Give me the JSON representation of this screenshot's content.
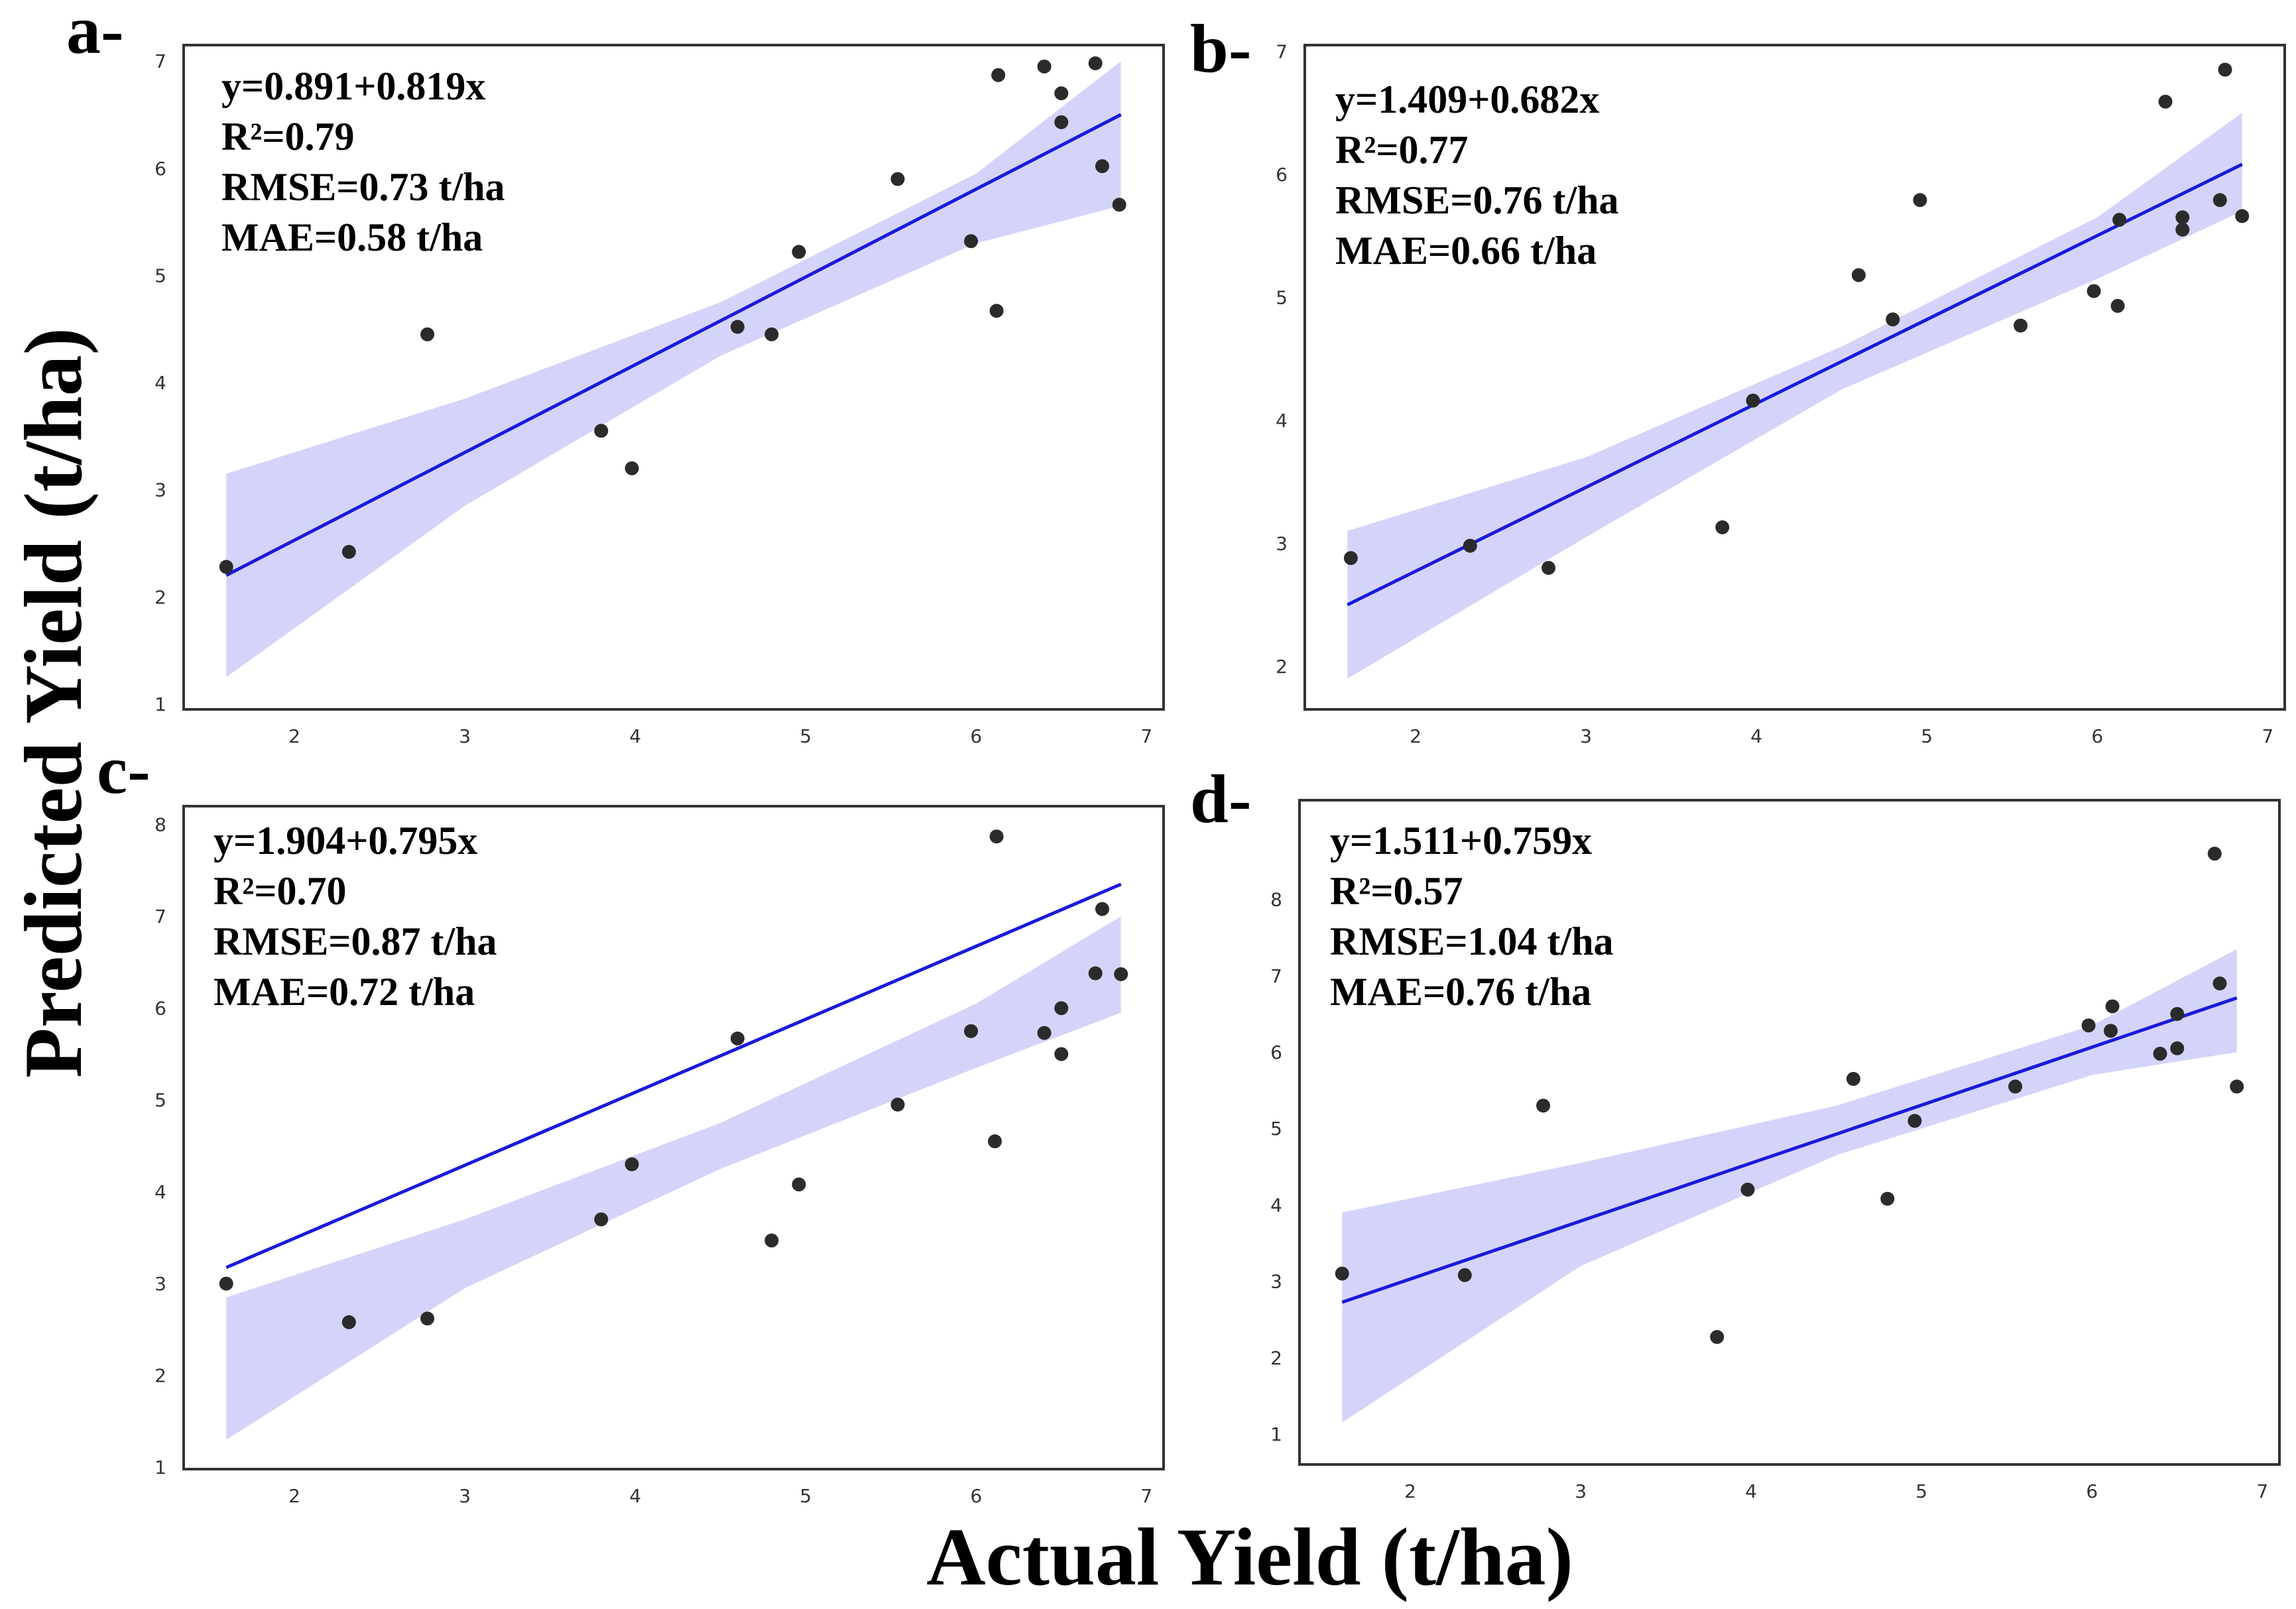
{
  "figure": {
    "xlabel": "Actual Yield (t/ha)",
    "ylabel": "Predicted Yield (t/ha)"
  },
  "colors": {
    "line": "#1a1adb",
    "band": "#d4d4fa",
    "point": "#2b2b2b",
    "frame": "#333333"
  },
  "chart_data": [
    {
      "type": "scatter",
      "panel_label": "a-",
      "stats": [
        "y=0.891+0.819x",
        "R²=0.79",
        "RMSE=0.73 t/ha",
        "MAE=0.58 t/ha"
      ],
      "xlim": [
        1.35,
        7.1
      ],
      "ylim": [
        0.95,
        7.15
      ],
      "xticks": [
        2,
        3,
        4,
        5,
        6,
        7
      ],
      "yticks": [
        1,
        2,
        3,
        4,
        5,
        6,
        7
      ],
      "fit": {
        "intercept": 0.891,
        "slope": 0.819,
        "x_range": [
          1.6,
          6.85
        ]
      },
      "band": {
        "x": [
          1.6,
          3.0,
          4.5,
          6.0,
          6.85
        ],
        "lower": [
          1.25,
          2.85,
          4.25,
          5.3,
          5.65
        ],
        "upper": [
          3.15,
          3.85,
          4.75,
          5.95,
          7.0
        ]
      },
      "points": [
        [
          1.6,
          2.28
        ],
        [
          2.32,
          2.42
        ],
        [
          2.78,
          4.45
        ],
        [
          3.8,
          3.55
        ],
        [
          3.98,
          3.2
        ],
        [
          4.6,
          4.52
        ],
        [
          4.8,
          4.45
        ],
        [
          4.96,
          5.22
        ],
        [
          5.54,
          5.9
        ],
        [
          5.97,
          5.32
        ],
        [
          6.12,
          4.67
        ],
        [
          6.13,
          6.87
        ],
        [
          6.4,
          6.95
        ],
        [
          6.5,
          6.7
        ],
        [
          6.5,
          6.43
        ],
        [
          6.7,
          6.98
        ],
        [
          6.74,
          6.02
        ],
        [
          6.84,
          5.66
        ]
      ]
    },
    {
      "type": "scatter",
      "panel_label": "b-",
      "stats": [
        "y=1.409+0.682x",
        "R²=0.77",
        "RMSE=0.76 t/ha",
        "MAE=0.66 t/ha"
      ],
      "xlim": [
        1.35,
        7.1
      ],
      "ylim": [
        1.65,
        7.05
      ],
      "xticks": [
        2,
        3,
        4,
        5,
        6,
        7
      ],
      "yticks": [
        2,
        3,
        4,
        5,
        6,
        7
      ],
      "fit": {
        "intercept": 1.409,
        "slope": 0.682,
        "x_range": [
          1.6,
          6.85
        ]
      },
      "band": {
        "x": [
          1.6,
          3.0,
          4.5,
          6.0,
          6.85
        ],
        "lower": [
          1.9,
          3.05,
          4.25,
          5.15,
          5.7
        ],
        "upper": [
          3.1,
          3.7,
          4.6,
          5.65,
          6.5
        ]
      },
      "points": [
        [
          1.62,
          2.88
        ],
        [
          2.32,
          2.98
        ],
        [
          2.78,
          2.8
        ],
        [
          3.8,
          3.13
        ],
        [
          3.98,
          4.16
        ],
        [
          4.6,
          5.18
        ],
        [
          4.8,
          4.82
        ],
        [
          4.96,
          5.79
        ],
        [
          5.55,
          4.77
        ],
        [
          5.98,
          5.05
        ],
        [
          6.12,
          4.93
        ],
        [
          6.13,
          5.63
        ],
        [
          6.4,
          6.59
        ],
        [
          6.5,
          5.65
        ],
        [
          6.5,
          5.55
        ],
        [
          6.72,
          5.79
        ],
        [
          6.75,
          6.85
        ],
        [
          6.85,
          5.66
        ]
      ]
    },
    {
      "type": "scatter",
      "panel_label": "c-",
      "stats": [
        "y=1.904+0.795x",
        "R²=0.70",
        "RMSE=0.87 t/ha",
        "MAE=0.72 t/ha"
      ],
      "xlim": [
        1.35,
        7.1
      ],
      "ylim": [
        0.98,
        8.2
      ],
      "xticks": [
        2,
        3,
        4,
        5,
        6,
        7
      ],
      "yticks": [
        1,
        2,
        3,
        4,
        5,
        6,
        7,
        8
      ],
      "fit": {
        "intercept": 1.904,
        "slope": 0.795,
        "x_range": [
          1.6,
          6.85
        ]
      },
      "band": {
        "x": [
          1.6,
          3.0,
          4.5,
          6.0,
          6.85
        ],
        "lower": [
          1.3,
          2.95,
          4.25,
          5.35,
          5.95
        ],
        "upper": [
          2.85,
          3.7,
          4.75,
          6.05,
          7.0
        ]
      },
      "points": [
        [
          1.6,
          3.0
        ],
        [
          2.32,
          2.58
        ],
        [
          2.78,
          2.62
        ],
        [
          3.8,
          3.7
        ],
        [
          3.98,
          4.3
        ],
        [
          4.6,
          5.67
        ],
        [
          4.8,
          3.47
        ],
        [
          4.96,
          4.08
        ],
        [
          5.54,
          4.95
        ],
        [
          5.97,
          5.75
        ],
        [
          6.11,
          4.55
        ],
        [
          6.12,
          7.87
        ],
        [
          6.4,
          5.73
        ],
        [
          6.5,
          6.0
        ],
        [
          6.5,
          5.5
        ],
        [
          6.7,
          6.38
        ],
        [
          6.74,
          7.08
        ],
        [
          6.85,
          6.37
        ]
      ]
    },
    {
      "type": "scatter",
      "panel_label": "d-",
      "stats": [
        "y=1.511+0.759x",
        "R²=0.57",
        "RMSE=1.04 t/ha",
        "MAE=0.76 t/ha"
      ],
      "xlim": [
        1.35,
        7.1
      ],
      "ylim": [
        0.6,
        9.3
      ],
      "xticks": [
        2,
        3,
        4,
        5,
        6,
        7
      ],
      "yticks": [
        1,
        2,
        3,
        4,
        5,
        6,
        7,
        8
      ],
      "fit": {
        "intercept": 1.511,
        "slope": 0.759,
        "x_range": [
          1.6,
          6.85
        ]
      },
      "band": {
        "x": [
          1.6,
          3.0,
          4.5,
          6.0,
          6.85
        ],
        "lower": [
          1.15,
          3.2,
          4.65,
          5.7,
          6.0
        ],
        "upper": [
          3.9,
          4.55,
          5.3,
          6.35,
          7.35
        ]
      },
      "points": [
        [
          1.6,
          3.1
        ],
        [
          2.32,
          3.08
        ],
        [
          2.78,
          5.3
        ],
        [
          3.8,
          2.27
        ],
        [
          3.98,
          4.2
        ],
        [
          4.6,
          5.65
        ],
        [
          4.8,
          4.08
        ],
        [
          4.96,
          5.1
        ],
        [
          5.55,
          5.55
        ],
        [
          5.98,
          6.35
        ],
        [
          6.11,
          6.28
        ],
        [
          6.12,
          6.6
        ],
        [
          6.4,
          5.98
        ],
        [
          6.5,
          6.05
        ],
        [
          6.5,
          6.5
        ],
        [
          6.72,
          8.6
        ],
        [
          6.75,
          6.9
        ],
        [
          6.85,
          5.55
        ]
      ]
    }
  ]
}
